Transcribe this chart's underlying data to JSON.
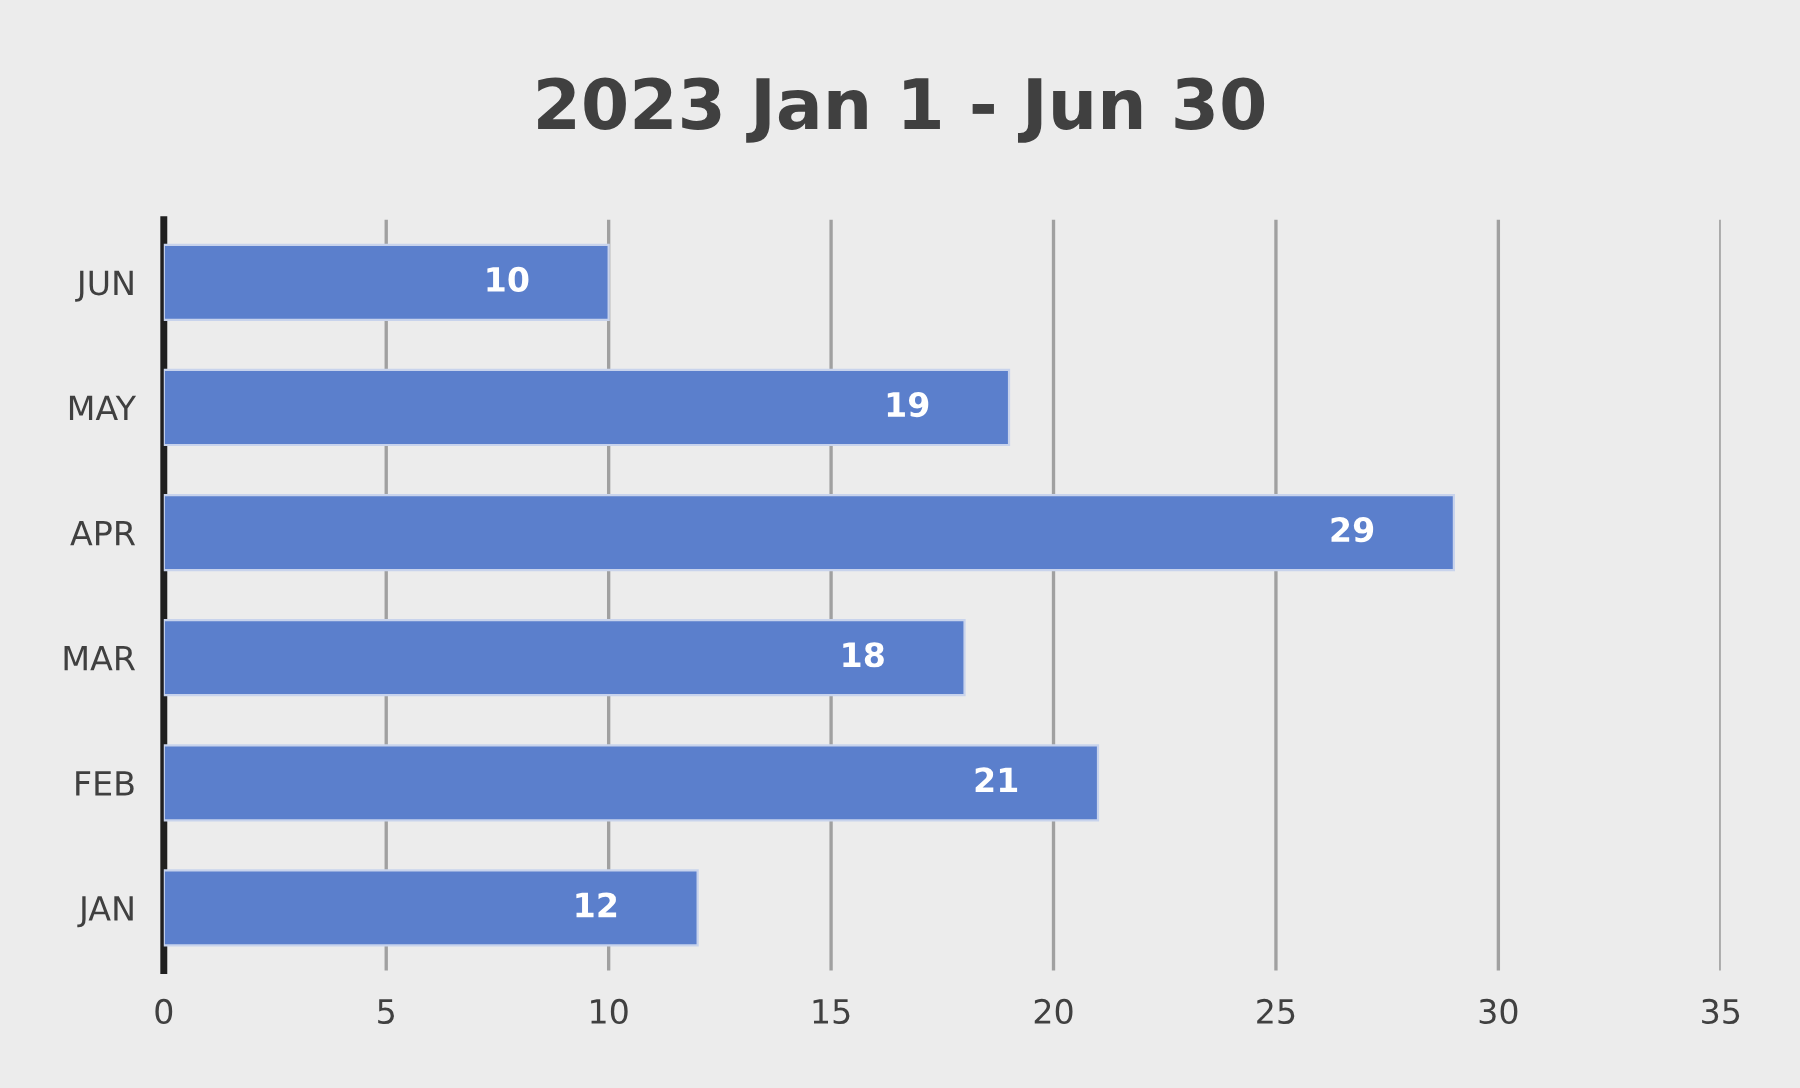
{
  "chart_data": {
    "type": "bar",
    "orientation": "horizontal",
    "title": "2023 Jan 1 - Jun 30",
    "categories": [
      "JUN",
      "MAY",
      "APR",
      "MAR",
      "FEB",
      "JAN"
    ],
    "values": [
      10,
      19,
      29,
      18,
      21,
      12
    ],
    "color": "#5b7fcc",
    "xlim": [
      0,
      35
    ],
    "xticks": [
      0,
      5,
      10,
      15,
      20,
      25,
      30,
      35
    ],
    "grid": "x",
    "data_labels": true
  }
}
